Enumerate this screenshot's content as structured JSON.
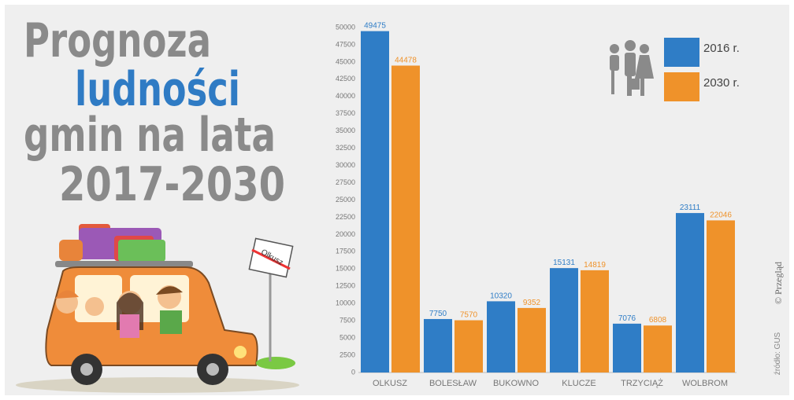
{
  "chart_data": {
    "type": "bar",
    "title_lines": [
      "Prognoza",
      "ludności",
      "gmin na lata",
      "2017-2030"
    ],
    "sign": "Olkusz",
    "source": "źródło: GUS",
    "credit": "© Przegląd",
    "categories": [
      "OLKUSZ",
      "BOLESŁAW",
      "BUKOWNO",
      "KLUCZE",
      "TRZYCIĄŻ",
      "WOLBROM"
    ],
    "series": [
      {
        "name": "2016 r.",
        "color": "#2f7dc6",
        "values": [
          49475,
          7750,
          10320,
          15131,
          7076,
          23111
        ]
      },
      {
        "name": "2030 r.",
        "color": "#ef922a",
        "values": [
          44478,
          7570,
          9352,
          14819,
          6808,
          22046
        ]
      }
    ],
    "ylim": [
      0,
      50000
    ],
    "yticks": [
      0,
      2500,
      5000,
      7500,
      10000,
      12500,
      15000,
      17500,
      20000,
      22500,
      25000,
      27500,
      30000,
      32500,
      35000,
      37500,
      40000,
      42500,
      45000,
      47500,
      50000
    ],
    "grid": false,
    "legend": "top-right"
  }
}
